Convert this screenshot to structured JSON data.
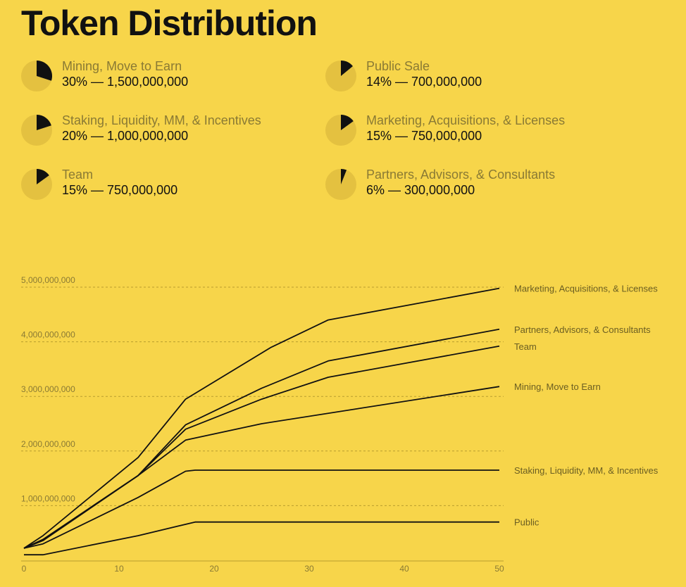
{
  "title": "Token Distribution",
  "colors": {
    "background": "#f7d54a",
    "pie_bg": "#e4c140",
    "slice": "#111111",
    "line": "#111111"
  },
  "legend": [
    {
      "name": "Mining, Move to Earn",
      "value": "30% — 1,500,000,000",
      "fraction": 0.3
    },
    {
      "name": "Public Sale",
      "value": "14% — 700,000,000",
      "fraction": 0.14
    },
    {
      "name": "Staking, Liquidity, MM, & Incentives",
      "value": "20% — 1,000,000,000",
      "fraction": 0.2
    },
    {
      "name": "Marketing, Acquisitions, & Licenses",
      "value": "15% — 750,000,000",
      "fraction": 0.15
    },
    {
      "name": "Team",
      "value": "15% — 750,000,000",
      "fraction": 0.15
    },
    {
      "name": "Partners, Advisors, & Consultants",
      "value": "6% — 300,000,000",
      "fraction": 0.06
    }
  ],
  "chart_data": {
    "type": "line",
    "title": "",
    "xlabel": "",
    "ylabel": "",
    "xlim": [
      0,
      50
    ],
    "ylim": [
      0,
      5000000000
    ],
    "x_ticks": [
      0,
      10,
      20,
      30,
      40,
      50
    ],
    "y_ticks": [
      1000000000,
      2000000000,
      3000000000,
      4000000000,
      5000000000
    ],
    "y_tick_labels": [
      "1,000,000,000",
      "2,000,000,000",
      "3,000,000,000",
      "4,000,000,000",
      "5,000,000,000"
    ],
    "x_tick_labels": [
      "0",
      "10",
      "20",
      "30",
      "40",
      "50"
    ],
    "grid": "horizontal dashed",
    "series": [
      {
        "name": "Marketing, Acquisitions, & Licenses",
        "points": [
          [
            0,
            220000000
          ],
          [
            2,
            450000000
          ],
          [
            12,
            1880000000
          ],
          [
            17,
            2950000000
          ],
          [
            26,
            3900000000
          ],
          [
            32,
            4400000000
          ],
          [
            50,
            4980000000
          ]
        ]
      },
      {
        "name": "Partners, Advisors, & Consultants",
        "points": [
          [
            0,
            220000000
          ],
          [
            2,
            380000000
          ],
          [
            12,
            1550000000
          ],
          [
            17,
            2480000000
          ],
          [
            25,
            3150000000
          ],
          [
            32,
            3650000000
          ],
          [
            50,
            4230000000
          ]
        ]
      },
      {
        "name": "Team",
        "points": [
          [
            0,
            220000000
          ],
          [
            2,
            380000000
          ],
          [
            12,
            1550000000
          ],
          [
            17,
            2400000000
          ],
          [
            25,
            2950000000
          ],
          [
            32,
            3350000000
          ],
          [
            50,
            3920000000
          ]
        ]
      },
      {
        "name": "Mining, Move to Earn",
        "points": [
          [
            0,
            220000000
          ],
          [
            2,
            360000000
          ],
          [
            12,
            1550000000
          ],
          [
            17,
            2200000000
          ],
          [
            25,
            2500000000
          ],
          [
            50,
            3180000000
          ]
        ]
      },
      {
        "name": "Staking, Liquidity, MM, & Incentives",
        "points": [
          [
            0,
            220000000
          ],
          [
            2,
            300000000
          ],
          [
            12,
            1150000000
          ],
          [
            17,
            1630000000
          ],
          [
            18,
            1650000000
          ],
          [
            50,
            1650000000
          ]
        ]
      },
      {
        "name": "Public",
        "points": [
          [
            0,
            100000000
          ],
          [
            2,
            100000000
          ],
          [
            12,
            450000000
          ],
          [
            18,
            700000000
          ],
          [
            50,
            700000000
          ]
        ]
      }
    ]
  }
}
